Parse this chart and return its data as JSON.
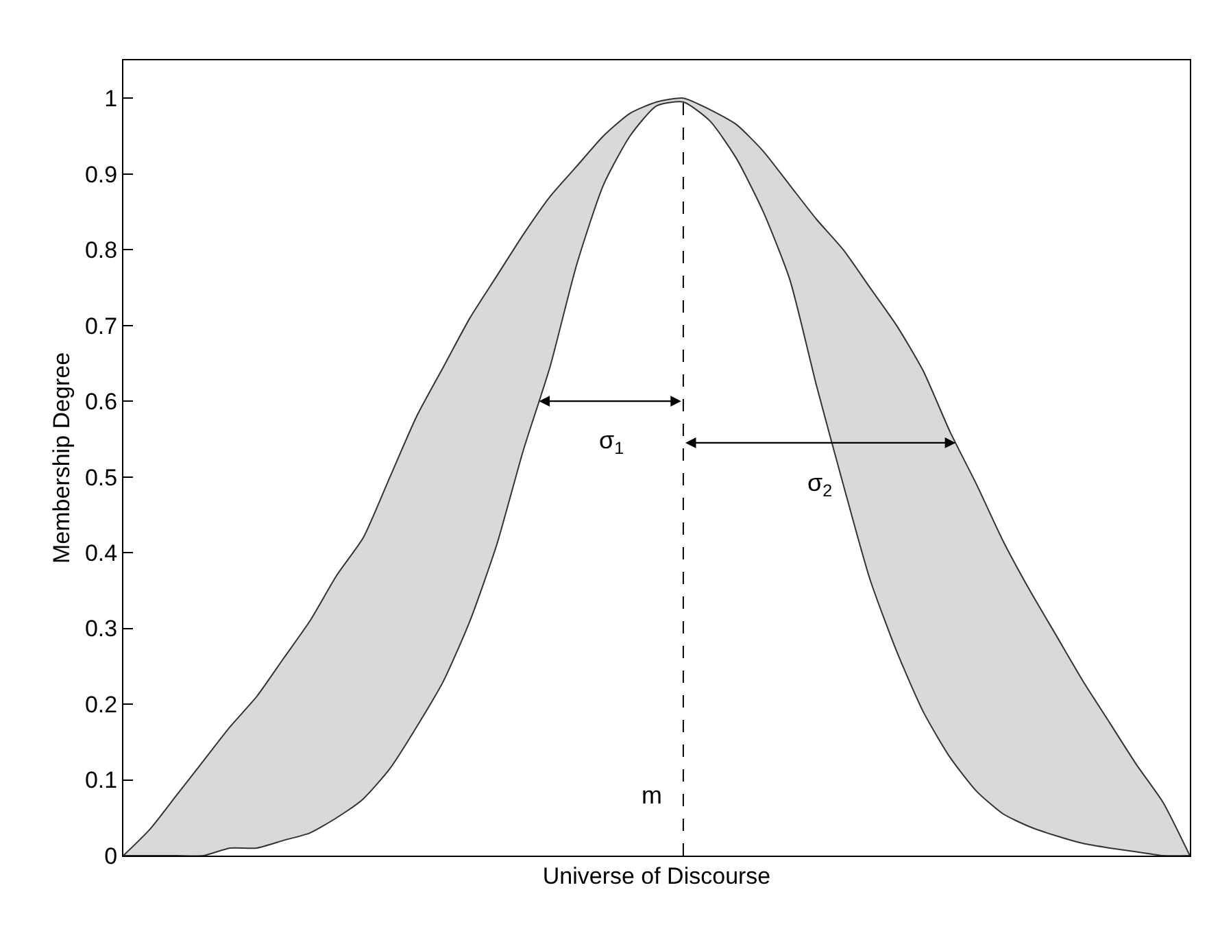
{
  "chart_data": {
    "type": "area",
    "xlabel": "Universe of Discourse",
    "ylabel": "Membership Degree",
    "categories": [
      null,
      null,
      null,
      null,
      null,
      null,
      null,
      null,
      null,
      null,
      null,
      null,
      null,
      null,
      null,
      null,
      null,
      null,
      null,
      null,
      null,
      null,
      null,
      null,
      null,
      null,
      null,
      null,
      null,
      null,
      null,
      null,
      null,
      null,
      null,
      null,
      null,
      null,
      null,
      null,
      null
    ],
    "series": [
      {
        "color": "#d9d9d9",
        "values": [
          0,
          0.035,
          0.08,
          0.125,
          0.17,
          0.21,
          0.26,
          0.31,
          0.37,
          0.42,
          0.5,
          0.58,
          0.645,
          0.71,
          0.765,
          0.82,
          0.87,
          0.91,
          0.95,
          0.98,
          0.995,
          1.0,
          0.985,
          0.965,
          0.93,
          0.885,
          0.84,
          0.8,
          0.75,
          0.7,
          0.64,
          0.56,
          0.49,
          0.415,
          0.35,
          0.29,
          0.23,
          0.175,
          0.12,
          0.07,
          0
        ]
      },
      {
        "color": "#ffffff",
        "values": [
          0,
          0,
          0,
          0,
          0.01,
          0.01,
          0.02,
          0.03,
          0.05,
          0.075,
          0.115,
          0.17,
          0.23,
          0.31,
          0.41,
          0.535,
          0.645,
          0.78,
          0.885,
          0.95,
          0.99,
          0.995,
          0.97,
          0.92,
          0.85,
          0.76,
          0.62,
          0.49,
          0.365,
          0.27,
          0.19,
          0.13,
          0.085,
          0.055,
          0.038,
          0.026,
          0.016,
          0.01,
          0.005,
          0,
          0
        ]
      }
    ],
    "annotations": [
      "σ$_{1}$",
      "σ$_{2}$",
      "m"
    ],
    "ylim": [
      0,
      1.05
    ],
    "yticks": [
      0,
      0.1,
      0.2,
      0.3,
      0.4,
      0.5,
      0.6,
      0.7,
      0.8,
      0.9,
      1
    ],
    "tick_labels": "y"
  }
}
